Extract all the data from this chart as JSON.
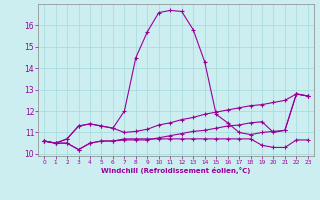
{
  "xlabel": "Windchill (Refroidissement éolien,°C)",
  "bg_color": "#cceef0",
  "line_color": "#990099",
  "grid_color": "#aadddd",
  "xlim": [
    -0.5,
    23.5
  ],
  "ylim": [
    9.9,
    17.0
  ],
  "yticks": [
    10,
    11,
    12,
    13,
    14,
    15,
    16
  ],
  "xticks": [
    0,
    1,
    2,
    3,
    4,
    5,
    6,
    7,
    8,
    9,
    10,
    11,
    12,
    13,
    14,
    15,
    16,
    17,
    18,
    19,
    20,
    21,
    22,
    23
  ],
  "series": {
    "line1_x": [
      0,
      1,
      2,
      3,
      4,
      5,
      6,
      7,
      8,
      9,
      10,
      11,
      12,
      13,
      14,
      15,
      16,
      17,
      18,
      19,
      20,
      21,
      22,
      23
    ],
    "line1_y": [
      10.6,
      10.5,
      10.5,
      10.2,
      10.5,
      10.6,
      10.6,
      10.7,
      10.7,
      10.7,
      10.7,
      10.7,
      10.7,
      10.7,
      10.7,
      10.7,
      10.7,
      10.7,
      10.7,
      10.4,
      10.3,
      10.3,
      10.65,
      10.65
    ],
    "line2_x": [
      0,
      1,
      2,
      3,
      4,
      5,
      6,
      7,
      8,
      9,
      10,
      11,
      12,
      13,
      14,
      15,
      16,
      17,
      18,
      19,
      20,
      21,
      22,
      23
    ],
    "line2_y": [
      10.6,
      10.5,
      10.7,
      11.3,
      11.4,
      11.3,
      11.2,
      12.0,
      14.5,
      15.7,
      16.6,
      16.7,
      16.65,
      15.8,
      14.3,
      11.85,
      11.45,
      11.0,
      10.9,
      11.0,
      11.05,
      11.1,
      12.8,
      12.7
    ],
    "line3_x": [
      0,
      1,
      2,
      3,
      4,
      5,
      6,
      7,
      8,
      9,
      10,
      11,
      12,
      13,
      14,
      15,
      16,
      17,
      18,
      19,
      20,
      21,
      22,
      23
    ],
    "line3_y": [
      10.6,
      10.5,
      10.7,
      11.3,
      11.4,
      11.3,
      11.2,
      11.0,
      11.05,
      11.15,
      11.35,
      11.45,
      11.6,
      11.7,
      11.85,
      11.95,
      12.05,
      12.15,
      12.25,
      12.3,
      12.4,
      12.5,
      12.8,
      12.7
    ],
    "line4_x": [
      0,
      1,
      2,
      3,
      4,
      5,
      6,
      7,
      8,
      9,
      10,
      11,
      12,
      13,
      14,
      15,
      16,
      17,
      18,
      19,
      20,
      21,
      22,
      23
    ],
    "line4_y": [
      10.6,
      10.5,
      10.5,
      10.2,
      10.5,
      10.6,
      10.6,
      10.65,
      10.65,
      10.65,
      10.75,
      10.85,
      10.95,
      11.05,
      11.1,
      11.2,
      11.3,
      11.35,
      11.45,
      11.5,
      11.0,
      11.1,
      12.8,
      12.7
    ]
  }
}
